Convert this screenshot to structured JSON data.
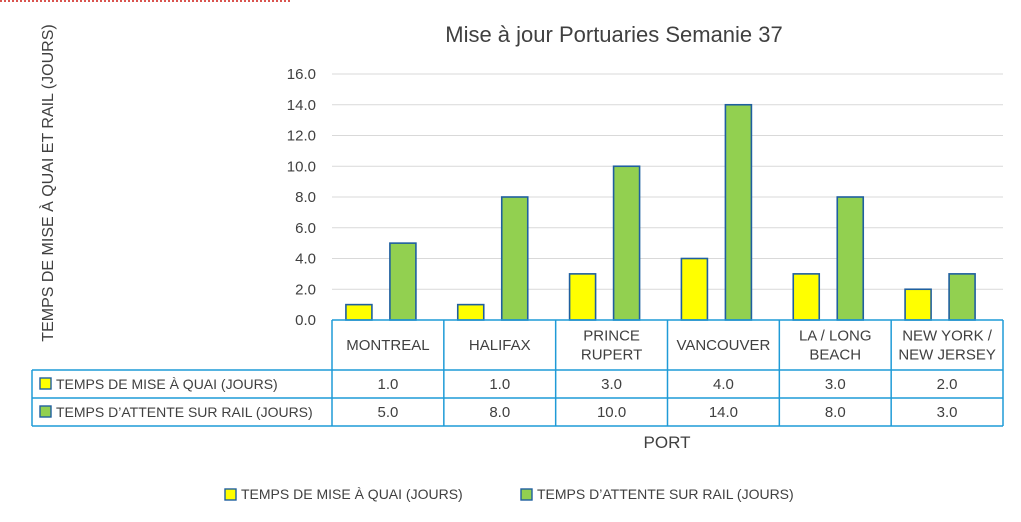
{
  "chart_data": {
    "type": "bar",
    "title": "Mise à jour Portuaries Semanie 37",
    "xlabel": "PORT",
    "ylabel": "TEMPS DE MISE À QUAI ET RAIL (JOURS)",
    "ylim": [
      0,
      16
    ],
    "yticks": [
      "0.0",
      "2.0",
      "4.0",
      "6.0",
      "8.0",
      "10.0",
      "12.0",
      "14.0",
      "16.0"
    ],
    "grid": true,
    "legend_position": "bottom",
    "categories": [
      [
        "MONTREAL"
      ],
      [
        "HALIFAX"
      ],
      [
        "PRINCE",
        "RUPERT"
      ],
      [
        "VANCOUVER"
      ],
      [
        "LA / LONG",
        "BEACH"
      ],
      [
        "NEW YORK /",
        "NEW JERSEY"
      ]
    ],
    "series": [
      {
        "name": "TEMPS DE MISE À QUAI (JOURS)",
        "values": [
          1.0,
          1.0,
          3.0,
          4.0,
          3.0,
          2.0
        ],
        "labels": [
          "1.0",
          "1.0",
          "3.0",
          "4.0",
          "3.0",
          "2.0"
        ],
        "color": "#ffff00"
      },
      {
        "name": "TEMPS  D’ATTENTE SUR RAIL (JOURS)",
        "values": [
          5.0,
          8.0,
          10.0,
          14.0,
          8.0,
          3.0
        ],
        "labels": [
          "5.0",
          "8.0",
          "10.0",
          "14.0",
          "8.0",
          "3.0"
        ],
        "color": "#92d050"
      }
    ],
    "colors": {
      "bar_border": "#1f5f9f",
      "table_border": "#1f9bd7",
      "gridline": "#d9d9d9",
      "text": "#404040"
    }
  }
}
